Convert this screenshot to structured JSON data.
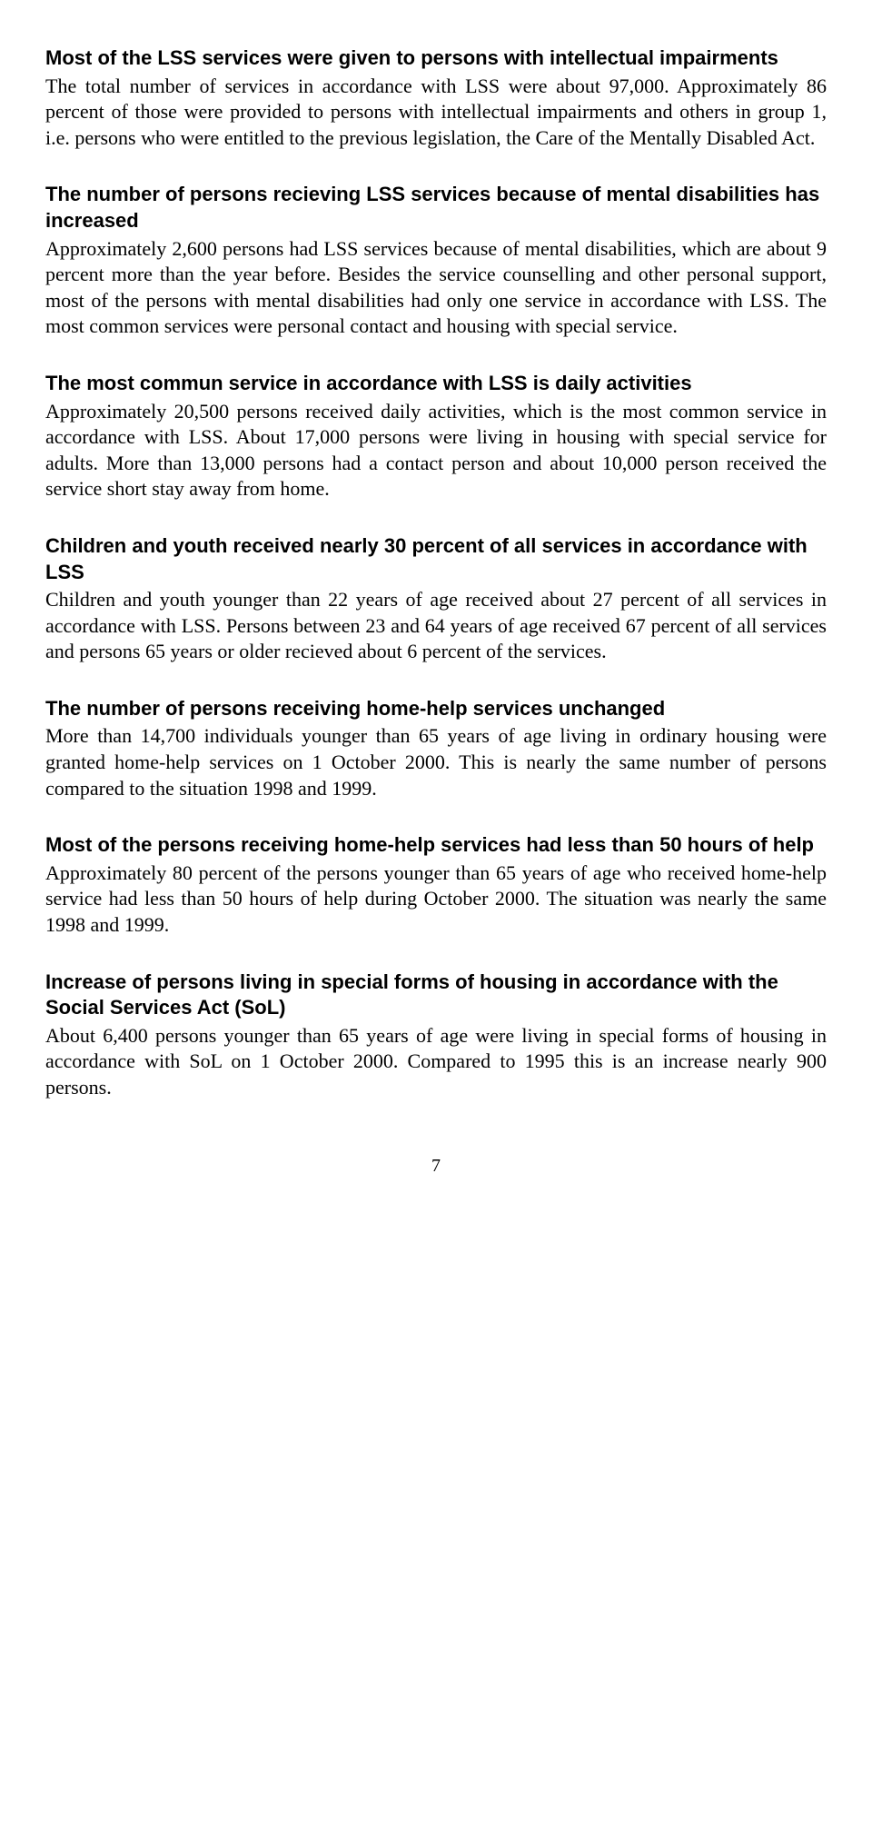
{
  "sections": [
    {
      "heading": "Most of the LSS services were given to persons with intellectual impairments",
      "body": "The total number of services in accordance with LSS were about 97,000. Approximately 86 percent of those were provided to persons with intellectual impairments and others in group 1, i.e. persons who were entitled to the previous legislation, the Care of the Mentally Disabled Act."
    },
    {
      "heading": "The number of persons recieving LSS services because of mental disabilities has increased",
      "body": "Approximately 2,600 persons had LSS services because of mental disabilities, which are about 9 percent more than the year before. Besides the service counselling and other personal support, most of the persons with mental disabilities had only one service in accordance with LSS. The most common services were personal contact and housing with special service."
    },
    {
      "heading": "The most commun service in accordance with LSS is daily activities",
      "body": "Approximately 20,500 persons received daily activities, which is the most common service in accordance with LSS. About 17,000 persons were living in housing with special service for adults. More than 13,000 persons had a contact person and about 10,000 person received the service short stay away from home."
    },
    {
      "heading": "Children and youth received nearly 30 percent of all services in accordance with LSS",
      "body": "Children and youth younger than 22 years of age received about 27 percent of all services in accordance with LSS. Persons between 23 and 64 years of age received 67 percent of all services and persons 65 years or older recieved about 6 percent of the services."
    },
    {
      "heading": "The number of persons receiving home-help services unchanged",
      "body": "More than 14,700 individuals younger than 65 years of age living in ordinary housing were granted home-help services on 1 October 2000. This is nearly the same number of persons compared to the situation 1998 and 1999."
    },
    {
      "heading": "Most of the persons receiving home-help services had less than 50 hours of help",
      "body": "Approximately 80 percent of the persons younger than 65 years of age who received home-help service had less than 50 hours of help during October 2000. The situation was nearly the same 1998 and 1999."
    },
    {
      "heading": "Increase of persons living in special forms of housing in accordance with the Social Services Act (SoL)",
      "body": "About 6,400 persons younger than 65 years of age were living in special forms of housing in accordance with SoL on 1 October 2000. Compared to 1995 this is an increase nearly 900 persons."
    }
  ],
  "pageNumber": "7"
}
